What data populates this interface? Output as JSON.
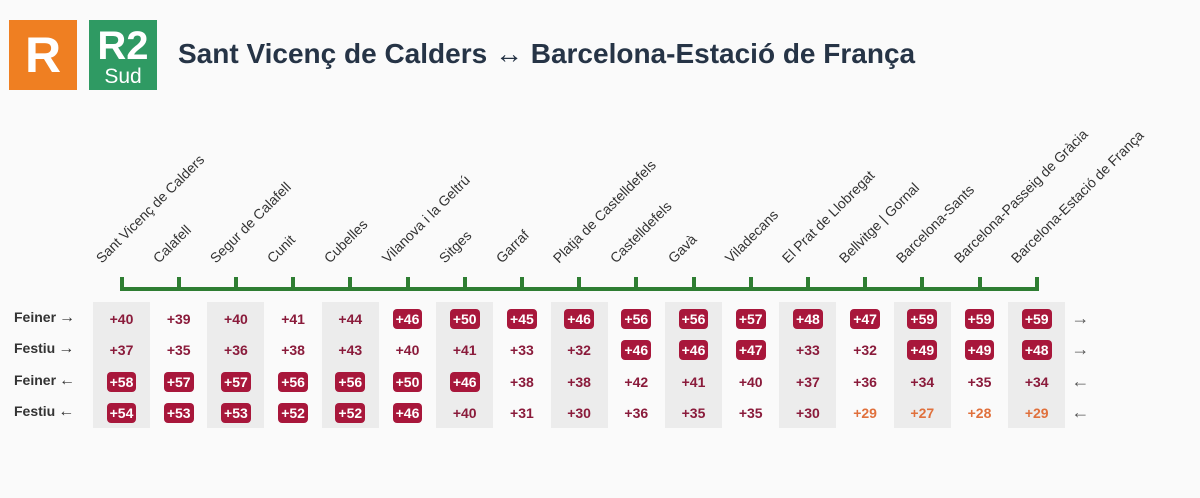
{
  "header": {
    "logo_r": "R",
    "logo_line": "R2",
    "logo_line_sub": "Sud",
    "title": "Sant Vicenç de Calders ↔ Barcelona-Estació de França"
  },
  "colors": {
    "badge": "#a8173b",
    "plain": "#8a1b3b",
    "low": "#e0703c",
    "line_green": "#2e7d32",
    "rodalies_orange": "#ef7f22",
    "r2_green": "#2f9a63"
  },
  "stations": [
    "Sant Vicenç de Calders",
    "Calafell",
    "Segur de Calafell",
    "Cunit",
    "Cubelles",
    "Vilanova i la Geltrú",
    "Sitges",
    "Garraf",
    "Platja de Castelldefels",
    "Castelldefels",
    "Gavà",
    "Viladecans",
    "El Prat de Llobregat",
    "Bellvitge | Gornal",
    "Barcelona-Sants",
    "Barcelona-Passeig de Gràcia",
    "Barcelona-Estació de França"
  ],
  "rows": [
    {
      "label": "Feiner",
      "arrow": "→",
      "values": [
        "+40",
        "+39",
        "+40",
        "+41",
        "+44",
        "+46",
        "+50",
        "+45",
        "+46",
        "+56",
        "+56",
        "+57",
        "+48",
        "+47",
        "+59",
        "+59",
        "+59"
      ],
      "styles": [
        "plain",
        "plain",
        "plain",
        "plain",
        "plain",
        "badge",
        "badge",
        "badge",
        "badge",
        "badge",
        "badge",
        "badge",
        "badge",
        "badge",
        "badge",
        "badge",
        "badge"
      ]
    },
    {
      "label": "Festiu",
      "arrow": "→",
      "values": [
        "+37",
        "+35",
        "+36",
        "+38",
        "+43",
        "+40",
        "+41",
        "+33",
        "+32",
        "+46",
        "+46",
        "+47",
        "+33",
        "+32",
        "+49",
        "+49",
        "+48"
      ],
      "styles": [
        "plain",
        "plain",
        "plain",
        "plain",
        "plain",
        "plain",
        "plain",
        "plain",
        "plain",
        "badge",
        "badge",
        "badge",
        "plain",
        "plain",
        "badge",
        "badge",
        "badge"
      ]
    },
    {
      "label": "Feiner",
      "arrow": "←",
      "values": [
        "+58",
        "+57",
        "+57",
        "+56",
        "+56",
        "+50",
        "+46",
        "+38",
        "+38",
        "+42",
        "+41",
        "+40",
        "+37",
        "+36",
        "+34",
        "+35",
        "+34"
      ],
      "styles": [
        "badge",
        "badge",
        "badge",
        "badge",
        "badge",
        "badge",
        "badge",
        "plain",
        "plain",
        "plain",
        "plain",
        "plain",
        "plain",
        "plain",
        "plain",
        "plain",
        "plain"
      ]
    },
    {
      "label": "Festiu",
      "arrow": "←",
      "values": [
        "+54",
        "+53",
        "+53",
        "+52",
        "+52",
        "+46",
        "+40",
        "+31",
        "+30",
        "+36",
        "+35",
        "+35",
        "+30",
        "+29",
        "+27",
        "+28",
        "+29"
      ],
      "styles": [
        "badge",
        "badge",
        "badge",
        "badge",
        "badge",
        "badge",
        "plain",
        "plain",
        "plain",
        "plain",
        "plain",
        "plain",
        "plain",
        "low",
        "low",
        "low",
        "low"
      ]
    }
  ]
}
